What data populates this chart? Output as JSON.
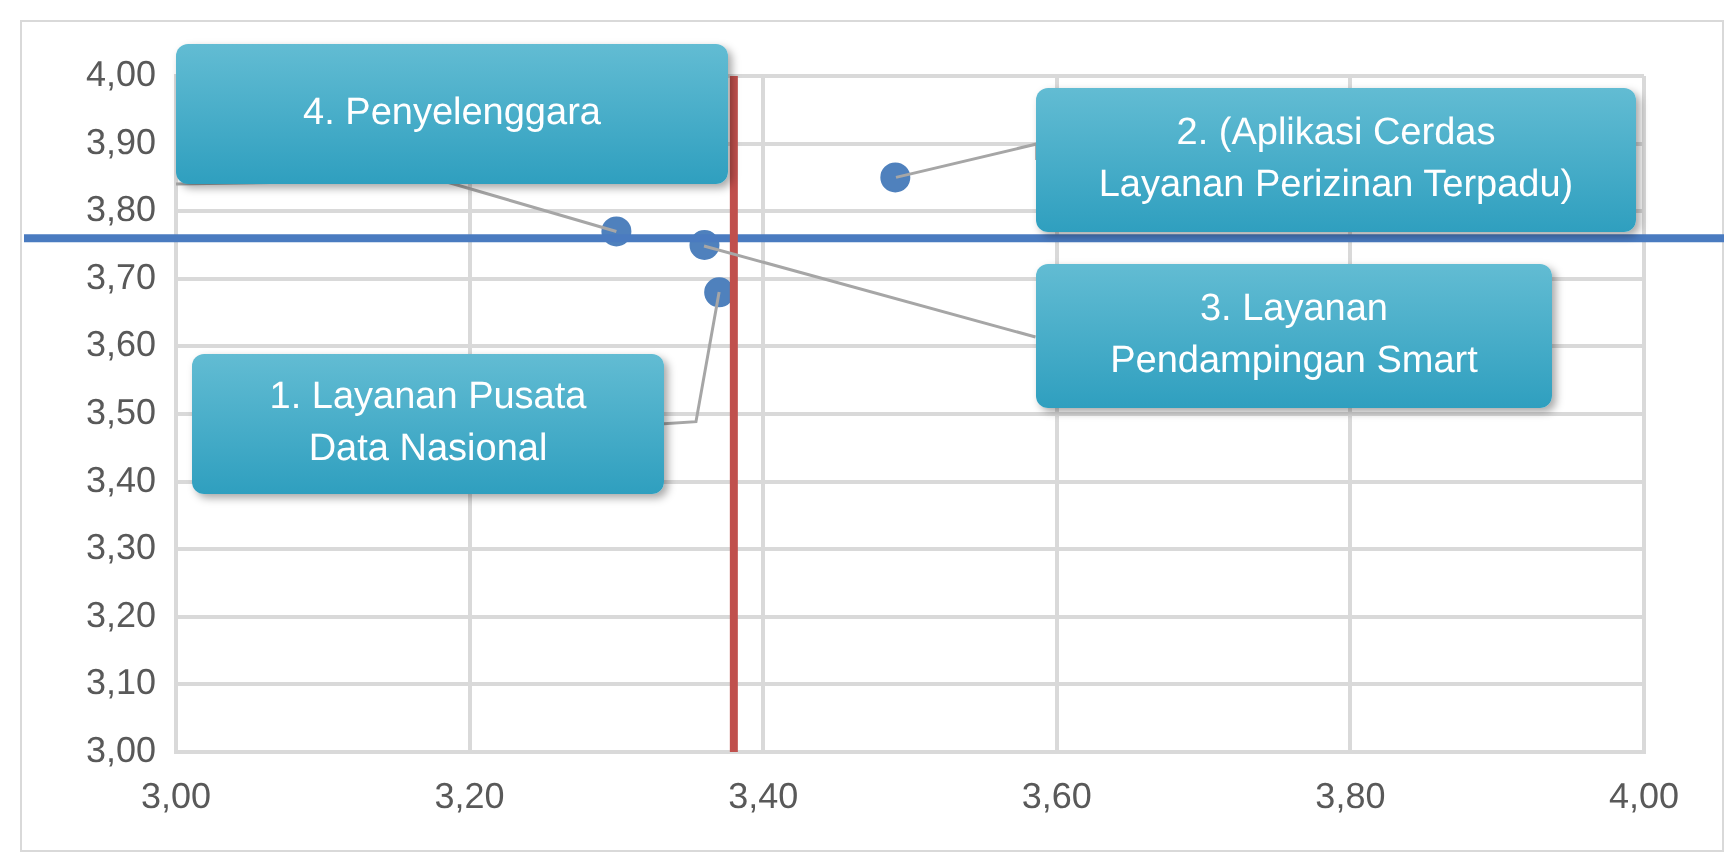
{
  "chart_data": {
    "type": "scatter",
    "x": [
      3.37,
      3.49,
      3.36,
      3.3
    ],
    "series": [
      {
        "color": "#4f81bd",
        "values": [
          3.68,
          3.85,
          3.75,
          3.77
        ]
      }
    ],
    "xlim": [
      3,
      4
    ],
    "ylim": [
      3,
      4
    ],
    "xticks": [
      {
        "value": 3,
        "label": "3,00"
      },
      {
        "value": 3.2,
        "label": "3,20"
      },
      {
        "value": 3.4,
        "label": "3,40"
      },
      {
        "value": 3.6,
        "label": "3,60"
      },
      {
        "value": 3.8,
        "label": "3,80"
      },
      {
        "value": 4,
        "label": "4,00"
      }
    ],
    "yticks": [
      {
        "value": 3,
        "label": "3,00"
      },
      {
        "value": 3.1,
        "label": "3,10"
      },
      {
        "value": 3.2,
        "label": "3,20"
      },
      {
        "value": 3.3,
        "label": "3,30"
      },
      {
        "value": 3.4,
        "label": "3,40"
      },
      {
        "value": 3.5,
        "label": "3,50"
      },
      {
        "value": 3.6,
        "label": "3,60"
      },
      {
        "value": 3.7,
        "label": "3,70"
      },
      {
        "value": 3.8,
        "label": "3,80"
      },
      {
        "value": 3.9,
        "label": "3,90"
      },
      {
        "value": 4,
        "label": "4,00"
      }
    ],
    "ref_lines": [
      {
        "axis": "y",
        "value": 3.76,
        "color": "#4a7bc0"
      },
      {
        "axis": "x",
        "value": 3.38,
        "color": "#c0504d"
      }
    ],
    "annotations": [
      "1. Layanan Pusata\nData Nasional",
      "2. (Aplikasi Cerdas\nLayanan Perizinan Terpadu)",
      "3. Layanan\nPendampingan Smart",
      "4. Penyelenggara"
    ],
    "grid": true,
    "legend": false,
    "marker": "circle"
  }
}
